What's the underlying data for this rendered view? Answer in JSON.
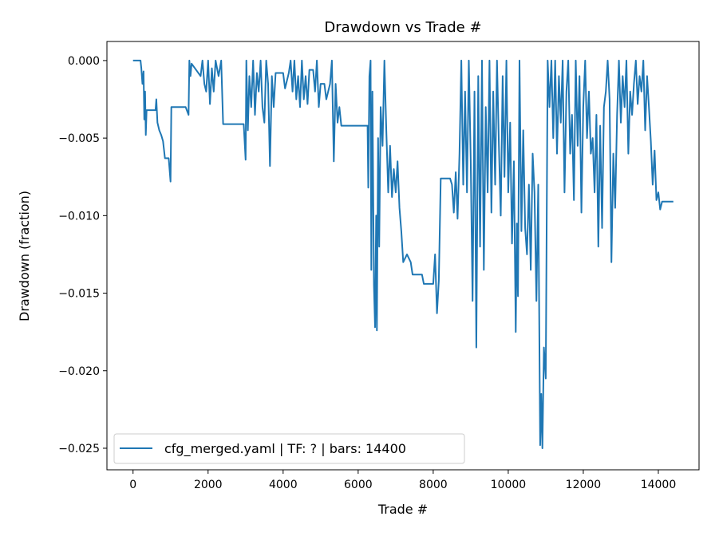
{
  "chart_data": {
    "type": "line",
    "title": "Drawdown vs Trade #",
    "xlabel": "Trade #",
    "ylabel": "Drawdown (fraction)",
    "xlim": [
      -696,
      15085
    ],
    "ylim": [
      -0.02639,
      0.00123
    ],
    "xticks": [
      0,
      2000,
      4000,
      6000,
      8000,
      10000,
      12000,
      14000
    ],
    "xtick_labels": [
      "0",
      "2000",
      "4000",
      "6000",
      "8000",
      "10000",
      "12000",
      "14000"
    ],
    "yticks": [
      0,
      -0.005,
      -0.01,
      -0.015,
      -0.02,
      -0.025
    ],
    "ytick_labels": [
      "0.000",
      "−0.005",
      "−0.010",
      "−0.015",
      "−0.020",
      "−0.025"
    ],
    "grid": false,
    "legend_position": "lower-left",
    "series": [
      {
        "name": "cfg_merged.yaml | TF: ? | bars: 14400",
        "color": "#1f77b4",
        "points": [
          [
            0,
            0
          ],
          [
            200,
            0
          ],
          [
            220,
            -0.0005
          ],
          [
            250,
            -0.0015
          ],
          [
            280,
            -0.0007
          ],
          [
            300,
            -0.0038
          ],
          [
            320,
            -0.002
          ],
          [
            340,
            -0.0048
          ],
          [
            360,
            -0.0032
          ],
          [
            600,
            -0.0032
          ],
          [
            620,
            -0.0025
          ],
          [
            650,
            -0.004
          ],
          [
            700,
            -0.0045
          ],
          [
            750,
            -0.0048
          ],
          [
            800,
            -0.0052
          ],
          [
            850,
            -0.0063
          ],
          [
            950,
            -0.0063
          ],
          [
            1000,
            -0.0078
          ],
          [
            1020,
            -0.003
          ],
          [
            1400,
            -0.003
          ],
          [
            1480,
            -0.0035
          ],
          [
            1500,
            0
          ],
          [
            1530,
            -0.001
          ],
          [
            1560,
            -0.0002
          ],
          [
            1800,
            -0.001
          ],
          [
            1850,
            0
          ],
          [
            1900,
            -0.0015
          ],
          [
            1950,
            -0.002
          ],
          [
            2000,
            0
          ],
          [
            2050,
            -0.0028
          ],
          [
            2100,
            -0.0005
          ],
          [
            2150,
            -0.002
          ],
          [
            2200,
            0
          ],
          [
            2280,
            -0.001
          ],
          [
            2350,
            0
          ],
          [
            2400,
            -0.0041
          ],
          [
            2950,
            -0.0041
          ],
          [
            3000,
            -0.0064
          ],
          [
            3020,
            0
          ],
          [
            3060,
            -0.0045
          ],
          [
            3100,
            -0.001
          ],
          [
            3150,
            -0.003
          ],
          [
            3200,
            0
          ],
          [
            3250,
            -0.0035
          ],
          [
            3300,
            -0.0008
          ],
          [
            3350,
            -0.002
          ],
          [
            3400,
            0
          ],
          [
            3450,
            -0.003
          ],
          [
            3500,
            -0.004
          ],
          [
            3550,
            0
          ],
          [
            3600,
            -0.0015
          ],
          [
            3650,
            -0.0068
          ],
          [
            3700,
            -0.001
          ],
          [
            3750,
            -0.003
          ],
          [
            3800,
            -0.0008
          ],
          [
            4000,
            -0.0008
          ],
          [
            4050,
            -0.0018
          ],
          [
            4150,
            -0.0008
          ],
          [
            4200,
            0
          ],
          [
            4250,
            -0.002
          ],
          [
            4300,
            0
          ],
          [
            4350,
            -0.0025
          ],
          [
            4400,
            -0.001
          ],
          [
            4450,
            -0.003
          ],
          [
            4500,
            0
          ],
          [
            4550,
            -0.0025
          ],
          [
            4600,
            -0.001
          ],
          [
            4650,
            -0.0028
          ],
          [
            4700,
            -0.0006
          ],
          [
            4800,
            -0.0006
          ],
          [
            4850,
            -0.002
          ],
          [
            4900,
            0
          ],
          [
            4950,
            -0.003
          ],
          [
            5000,
            -0.0015
          ],
          [
            5100,
            -0.0015
          ],
          [
            5150,
            -0.0025
          ],
          [
            5250,
            -0.0015
          ],
          [
            5300,
            0
          ],
          [
            5350,
            -0.0065
          ],
          [
            5400,
            -0.0015
          ],
          [
            5450,
            -0.004
          ],
          [
            5500,
            -0.003
          ],
          [
            5550,
            -0.0042
          ],
          [
            6250,
            -0.0042
          ],
          [
            6270,
            -0.0082
          ],
          [
            6300,
            -0.001
          ],
          [
            6330,
            0
          ],
          [
            6350,
            -0.0135
          ],
          [
            6380,
            -0.002
          ],
          [
            6420,
            -0.0145
          ],
          [
            6450,
            -0.0172
          ],
          [
            6480,
            -0.01
          ],
          [
            6500,
            -0.0174
          ],
          [
            6530,
            -0.005
          ],
          [
            6560,
            -0.012
          ],
          [
            6600,
            -0.003
          ],
          [
            6650,
            -0.0055
          ],
          [
            6700,
            0
          ],
          [
            6750,
            -0.0045
          ],
          [
            6800,
            -0.0085
          ],
          [
            6850,
            -0.0055
          ],
          [
            6900,
            -0.0088
          ],
          [
            6950,
            -0.007
          ],
          [
            7000,
            -0.0085
          ],
          [
            7050,
            -0.0065
          ],
          [
            7100,
            -0.0095
          ],
          [
            7150,
            -0.011
          ],
          [
            7200,
            -0.013
          ],
          [
            7300,
            -0.0125
          ],
          [
            7400,
            -0.013
          ],
          [
            7450,
            -0.0138
          ],
          [
            7700,
            -0.0138
          ],
          [
            7750,
            -0.0144
          ],
          [
            8000,
            -0.0144
          ],
          [
            8050,
            -0.0125
          ],
          [
            8100,
            -0.0163
          ],
          [
            8150,
            -0.0142
          ],
          [
            8200,
            -0.0076
          ],
          [
            8450,
            -0.0076
          ],
          [
            8500,
            -0.008
          ],
          [
            8550,
            -0.0098
          ],
          [
            8600,
            -0.0072
          ],
          [
            8650,
            -0.0102
          ],
          [
            8700,
            -0.006
          ],
          [
            8750,
            0
          ],
          [
            8800,
            -0.008
          ],
          [
            8850,
            -0.002
          ],
          [
            8900,
            -0.0085
          ],
          [
            8950,
            0
          ],
          [
            9000,
            -0.0065
          ],
          [
            9050,
            -0.0155
          ],
          [
            9100,
            -0.002
          ],
          [
            9150,
            -0.0185
          ],
          [
            9200,
            -0.001
          ],
          [
            9250,
            -0.012
          ],
          [
            9300,
            0
          ],
          [
            9350,
            -0.0135
          ],
          [
            9400,
            -0.003
          ],
          [
            9450,
            -0.0085
          ],
          [
            9500,
            0
          ],
          [
            9550,
            -0.0098
          ],
          [
            9600,
            -0.002
          ],
          [
            9650,
            -0.008
          ],
          [
            9700,
            0
          ],
          [
            9750,
            -0.0055
          ],
          [
            9800,
            -0.01
          ],
          [
            9850,
            -0.001
          ],
          [
            9900,
            -0.0075
          ],
          [
            9950,
            0
          ],
          [
            10000,
            -0.0085
          ],
          [
            10050,
            -0.004
          ],
          [
            10100,
            -0.0118
          ],
          [
            10150,
            -0.0065
          ],
          [
            10200,
            -0.0175
          ],
          [
            10230,
            -0.0105
          ],
          [
            10260,
            -0.0152
          ],
          [
            10300,
            0
          ],
          [
            10350,
            -0.011
          ],
          [
            10400,
            -0.0045
          ],
          [
            10450,
            -0.0108
          ],
          [
            10500,
            -0.0125
          ],
          [
            10550,
            -0.008
          ],
          [
            10600,
            -0.0135
          ],
          [
            10650,
            -0.006
          ],
          [
            10700,
            -0.0085
          ],
          [
            10750,
            -0.0155
          ],
          [
            10800,
            -0.008
          ],
          [
            10850,
            -0.0248
          ],
          [
            10880,
            -0.0215
          ],
          [
            10910,
            -0.025
          ],
          [
            10950,
            -0.0185
          ],
          [
            11000,
            -0.0205
          ],
          [
            11050,
            0
          ],
          [
            11100,
            -0.003
          ],
          [
            11150,
            0
          ],
          [
            11200,
            -0.005
          ],
          [
            11250,
            0
          ],
          [
            11300,
            -0.006
          ],
          [
            11350,
            -0.001
          ],
          [
            11400,
            -0.004
          ],
          [
            11450,
            0
          ],
          [
            11500,
            -0.0085
          ],
          [
            11550,
            -0.002
          ],
          [
            11600,
            0
          ],
          [
            11650,
            -0.006
          ],
          [
            11700,
            -0.0035
          ],
          [
            11750,
            -0.009
          ],
          [
            11800,
            0
          ],
          [
            11850,
            -0.0055
          ],
          [
            11900,
            -0.001
          ],
          [
            11950,
            -0.0098
          ],
          [
            12000,
            -0.003
          ],
          [
            12050,
            0
          ],
          [
            12100,
            -0.005
          ],
          [
            12150,
            -0.002
          ],
          [
            12200,
            -0.006
          ],
          [
            12250,
            -0.005
          ],
          [
            12300,
            -0.0085
          ],
          [
            12350,
            -0.0035
          ],
          [
            12400,
            -0.012
          ],
          [
            12450,
            -0.0042
          ],
          [
            12500,
            -0.0108
          ],
          [
            12550,
            -0.003
          ],
          [
            12600,
            -0.002
          ],
          [
            12650,
            0
          ],
          [
            12700,
            -0.0025
          ],
          [
            12750,
            -0.013
          ],
          [
            12800,
            -0.006
          ],
          [
            12850,
            -0.0095
          ],
          [
            12900,
            -0.0035
          ],
          [
            12950,
            0
          ],
          [
            13000,
            -0.004
          ],
          [
            13050,
            -0.001
          ],
          [
            13100,
            -0.003
          ],
          [
            13150,
            0
          ],
          [
            13200,
            -0.006
          ],
          [
            13250,
            -0.002
          ],
          [
            13300,
            -0.0035
          ],
          [
            13350,
            -0.0015
          ],
          [
            13400,
            0
          ],
          [
            13450,
            -0.0028
          ],
          [
            13500,
            -0.001
          ],
          [
            13550,
            -0.002
          ],
          [
            13600,
            0
          ],
          [
            13650,
            -0.0045
          ],
          [
            13700,
            -0.001
          ],
          [
            13750,
            -0.003
          ],
          [
            13800,
            -0.0052
          ],
          [
            13850,
            -0.008
          ],
          [
            13900,
            -0.0058
          ],
          [
            13950,
            -0.009
          ],
          [
            14000,
            -0.0085
          ],
          [
            14050,
            -0.0096
          ],
          [
            14100,
            -0.0091
          ],
          [
            14400,
            -0.0091
          ]
        ]
      }
    ]
  }
}
